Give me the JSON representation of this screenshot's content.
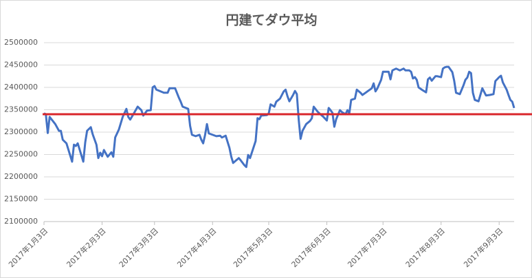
{
  "chart_data": {
    "type": "line",
    "title": "円建てダウ平均",
    "color": "#4472c4",
    "grid": true,
    "x": [
      "2017-01-03",
      "2017-01-04",
      "2017-01-05",
      "2017-01-06",
      "2017-01-09",
      "2017-01-11",
      "2017-01-12",
      "2017-01-13",
      "2017-01-15",
      "2017-01-18",
      "2017-01-19",
      "2017-01-20",
      "2017-01-21",
      "2017-01-24",
      "2017-01-25",
      "2017-01-26",
      "2017-01-28",
      "2017-01-29",
      "2017-01-31",
      "2017-02-01",
      "2017-02-02",
      "2017-02-03",
      "2017-02-04",
      "2017-02-06",
      "2017-02-08",
      "2017-02-09",
      "2017-02-10",
      "2017-02-12",
      "2017-02-14",
      "2017-02-16",
      "2017-02-17",
      "2017-02-18",
      "2017-02-20",
      "2017-02-22",
      "2017-02-24",
      "2017-02-25",
      "2017-02-27",
      "2017-03-01",
      "2017-03-02",
      "2017-03-03",
      "2017-03-04",
      "2017-03-08",
      "2017-03-10",
      "2017-03-11",
      "2017-03-14",
      "2017-03-16",
      "2017-03-17",
      "2017-03-18",
      "2017-03-21",
      "2017-03-22",
      "2017-03-23",
      "2017-03-25",
      "2017-03-27",
      "2017-03-28",
      "2017-03-29",
      "2017-03-30",
      "2017-03-31",
      "2017-04-01",
      "2017-04-03",
      "2017-04-05",
      "2017-04-07",
      "2017-04-08",
      "2017-04-10",
      "2017-04-12",
      "2017-04-13",
      "2017-04-14",
      "2017-04-17",
      "2017-04-18",
      "2017-04-20",
      "2017-04-21",
      "2017-04-22",
      "2017-04-23",
      "2017-04-26",
      "2017-04-27",
      "2017-04-28",
      "2017-04-29",
      "2017-05-02",
      "2017-05-03",
      "2017-05-04",
      "2017-05-06",
      "2017-05-07",
      "2017-05-09",
      "2017-05-11",
      "2017-05-12",
      "2017-05-13",
      "2017-05-14",
      "2017-05-16",
      "2017-05-17",
      "2017-05-18",
      "2017-05-19",
      "2017-05-20",
      "2017-05-21",
      "2017-05-23",
      "2017-05-25",
      "2017-05-26",
      "2017-05-27",
      "2017-05-29",
      "2017-05-30",
      "2017-06-01",
      "2017-06-03",
      "2017-06-04",
      "2017-06-05",
      "2017-06-06",
      "2017-06-07",
      "2017-06-08",
      "2017-06-10",
      "2017-06-11",
      "2017-06-13",
      "2017-06-14",
      "2017-06-15",
      "2017-06-16",
      "2017-06-18",
      "2017-06-19",
      "2017-06-21",
      "2017-06-22",
      "2017-06-24",
      "2017-06-25",
      "2017-06-27",
      "2017-06-28",
      "2017-06-29",
      "2017-06-30",
      "2017-07-02",
      "2017-07-03",
      "2017-07-05",
      "2017-07-06",
      "2017-07-07",
      "2017-07-08",
      "2017-07-10",
      "2017-07-12",
      "2017-07-14",
      "2017-07-15",
      "2017-07-17",
      "2017-07-18",
      "2017-07-19",
      "2017-07-20",
      "2017-07-21",
      "2017-07-22",
      "2017-07-24",
      "2017-07-26",
      "2017-07-27",
      "2017-07-28",
      "2017-07-29",
      "2017-07-31",
      "2017-08-01",
      "2017-08-03",
      "2017-08-04",
      "2017-08-05",
      "2017-08-06",
      "2017-08-07",
      "2017-08-09",
      "2017-08-10",
      "2017-08-11",
      "2017-08-13",
      "2017-08-15",
      "2017-08-16",
      "2017-08-17",
      "2017-08-18",
      "2017-08-19",
      "2017-08-20",
      "2017-08-21",
      "2017-08-23",
      "2017-08-25",
      "2017-08-27",
      "2017-08-29",
      "2017-08-31",
      "2017-09-01",
      "2017-09-03",
      "2017-09-04",
      "2017-09-05",
      "2017-09-07",
      "2017-09-08",
      "2017-09-09",
      "2017-09-10",
      "2017-09-11"
    ],
    "values": [
      2342000,
      2340000,
      2298000,
      2334000,
      2318000,
      2303000,
      2303000,
      2283000,
      2275000,
      2234000,
      2272000,
      2269000,
      2275000,
      2234000,
      2277000,
      2303000,
      2311000,
      2295000,
      2272000,
      2242000,
      2254000,
      2246000,
      2260000,
      2245000,
      2255000,
      2245000,
      2288000,
      2306000,
      2334000,
      2352000,
      2334000,
      2328000,
      2342000,
      2357000,
      2349000,
      2337000,
      2348000,
      2349000,
      2400000,
      2403000,
      2395000,
      2388000,
      2388000,
      2398000,
      2398000,
      2377000,
      2368000,
      2357000,
      2352000,
      2314000,
      2294000,
      2291000,
      2294000,
      2283000,
      2275000,
      2294000,
      2318000,
      2297000,
      2294000,
      2291000,
      2292000,
      2288000,
      2292000,
      2265000,
      2245000,
      2231000,
      2242000,
      2237000,
      2226000,
      2222000,
      2249000,
      2242000,
      2280000,
      2331000,
      2329000,
      2337000,
      2338000,
      2342000,
      2362000,
      2357000,
      2368000,
      2375000,
      2391000,
      2395000,
      2380000,
      2369000,
      2383000,
      2392000,
      2385000,
      2328000,
      2285000,
      2303000,
      2318000,
      2325000,
      2331000,
      2357000,
      2346000,
      2342000,
      2335000,
      2326000,
      2354000,
      2349000,
      2343000,
      2312000,
      2329000,
      2349000,
      2345000,
      2340000,
      2349000,
      2342000,
      2372000,
      2375000,
      2395000,
      2388000,
      2383000,
      2389000,
      2392000,
      2398000,
      2409000,
      2391000,
      2398000,
      2417000,
      2435000,
      2435000,
      2435000,
      2418000,
      2438000,
      2442000,
      2438000,
      2442000,
      2438000,
      2438000,
      2435000,
      2420000,
      2423000,
      2417000,
      2400000,
      2394000,
      2389000,
      2418000,
      2422000,
      2415000,
      2425000,
      2425000,
      2423000,
      2442000,
      2445000,
      2446000,
      2446000,
      2434000,
      2415000,
      2388000,
      2385000,
      2405000,
      2417000,
      2422000,
      2435000,
      2432000,
      2388000,
      2372000,
      2369000,
      2398000,
      2382000,
      2383000,
      2385000,
      2414000,
      2423000,
      2426000,
      2411000,
      2395000,
      2383000,
      2372000,
      2368000,
      2354000
    ],
    "xlim": [
      "2017-01-03",
      "2017-09-11"
    ],
    "xticks": [
      {
        "value": "2017-01-03",
        "label": "2017年1月3日"
      },
      {
        "value": "2017-02-03",
        "label": "2017年2月3日"
      },
      {
        "value": "2017-03-03",
        "label": "2017年3月3日"
      },
      {
        "value": "2017-04-03",
        "label": "2017年4月3日"
      },
      {
        "value": "2017-05-03",
        "label": "2017年5月3日"
      },
      {
        "value": "2017-06-03",
        "label": "2017年6月3日"
      },
      {
        "value": "2017-07-03",
        "label": "2017年7月3日"
      },
      {
        "value": "2017-08-03",
        "label": "2017年8月3日"
      },
      {
        "value": "2017-09-03",
        "label": "2017年9月3日"
      }
    ],
    "ylim": [
      2100000,
      2500000
    ],
    "yticks": [
      2100000,
      2150000,
      2200000,
      2250000,
      2300000,
      2350000,
      2400000,
      2450000,
      2500000
    ],
    "reference_line": {
      "value": 2340000,
      "color": "#d9262b"
    }
  }
}
